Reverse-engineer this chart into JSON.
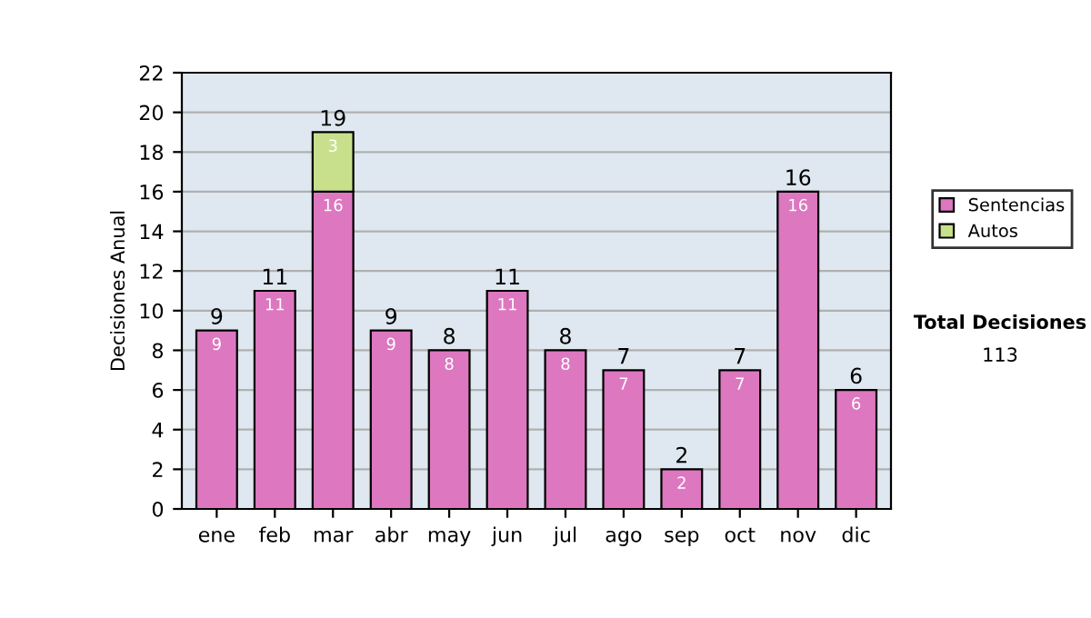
{
  "chart_data": {
    "type": "bar",
    "ylabel": "Decisiones Anual",
    "categories": [
      "ene",
      "feb",
      "mar",
      "abr",
      "may",
      "jun",
      "jul",
      "ago",
      "sep",
      "oct",
      "nov",
      "dic"
    ],
    "series": [
      {
        "name": "Sentencias",
        "color": "#dd77c0",
        "values": [
          9,
          11,
          16,
          9,
          8,
          11,
          8,
          7,
          2,
          7,
          16,
          6
        ]
      },
      {
        "name": "Autos",
        "color": "#c8e08c",
        "values": [
          null,
          null,
          3,
          null,
          null,
          null,
          null,
          null,
          null,
          null,
          null,
          null
        ]
      }
    ],
    "stacked": true,
    "data_labels": true,
    "totals": [
      "9",
      "11",
      "19",
      "9",
      "8",
      "11",
      "8",
      "7",
      "2",
      "7",
      "16",
      "6"
    ],
    "ylim": [
      0,
      22
    ],
    "yticks": [
      0,
      2,
      4,
      6,
      8,
      10,
      12,
      14,
      16,
      18,
      20,
      22
    ],
    "grid": "y",
    "legend": "right",
    "annotations": [
      "Total Decisiones",
      "113"
    ]
  }
}
